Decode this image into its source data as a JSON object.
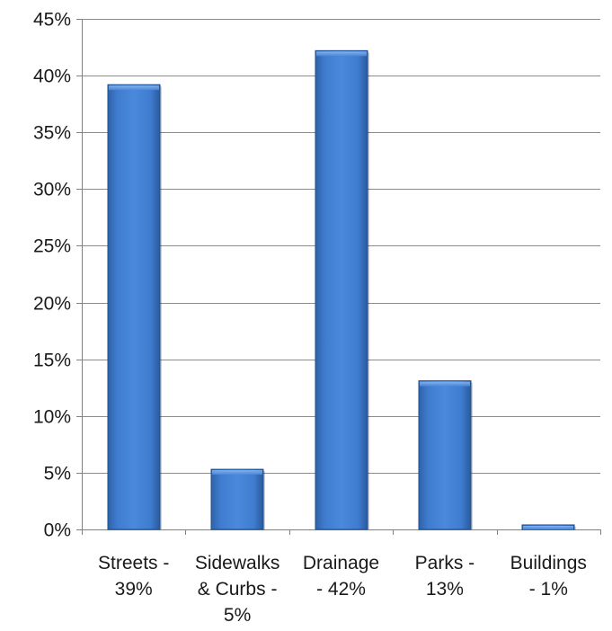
{
  "chart_data": {
    "type": "bar",
    "title": "",
    "xlabel": "",
    "ylabel": "",
    "categories": [
      [
        "Streets -",
        "39%"
      ],
      [
        "Sidewalks",
        "& Curbs -",
        "5%"
      ],
      [
        "Drainage",
        "- 42%"
      ],
      [
        "Parks -",
        "13%"
      ],
      [
        "Buildings",
        "- 1%"
      ]
    ],
    "values": [
      39.2,
      5.3,
      42.2,
      13.1,
      0.4
    ],
    "ylim": [
      0,
      45
    ],
    "y_ticks": [
      0,
      5,
      10,
      15,
      20,
      25,
      30,
      35,
      40,
      45
    ],
    "y_tick_format": "percent",
    "grid": true,
    "legend": "none",
    "colors": {
      "bar_top": "#5a93dd",
      "bar_mid": "#3c78cc",
      "bar_bottom": "#2f66b3",
      "bar_edge": "#1d4f93",
      "gridline": "#8c8c8c",
      "axis": "#808080"
    }
  }
}
